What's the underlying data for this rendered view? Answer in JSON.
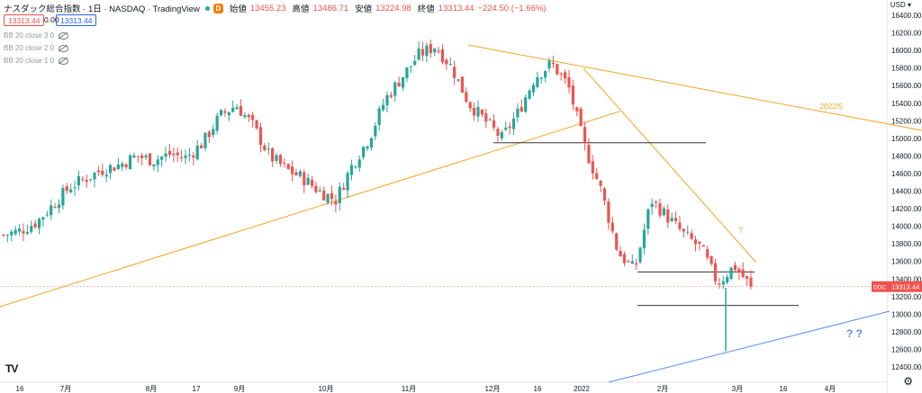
{
  "header": {
    "title": "ナスダック総合指数 · 1日 · NASDAQ · TradingView",
    "badge": "D",
    "ohlc": [
      {
        "label": "始値",
        "value": "13455.23"
      },
      {
        "label": "高値",
        "value": "13486.71"
      },
      {
        "label": "安値",
        "value": "13224.98"
      },
      {
        "label": "終値",
        "value": "13313.44"
      }
    ],
    "change": "−224.50 (−1.66%)",
    "price_box_sell": "13313.44",
    "spread": "0.00",
    "price_box_buy": "13313.44"
  },
  "indicators": [
    {
      "label": "BB 20 close 3 0",
      "icon": "eye-hidden-icon"
    },
    {
      "label": "BB 20 close 2 0",
      "icon": "eye-hidden-icon"
    },
    {
      "label": "BB 20 close 1 0",
      "icon": "eye-hidden-icon"
    }
  ],
  "axis": {
    "currency": "USD",
    "price_ticks": [
      "16400.00",
      "16200.00",
      "16000.00",
      "15800.00",
      "15600.00",
      "15400.00",
      "15200.00",
      "15000.00",
      "14800.00",
      "14600.00",
      "14400.00",
      "14200.00",
      "14000.00",
      "13800.00",
      "13600.00",
      "13400.00",
      "13200.00",
      "13000.00",
      "12800.00",
      "12600.00",
      "12400.00"
    ],
    "time_ticks": [
      "16",
      "7月",
      "8月",
      "17",
      "9月",
      "10月",
      "11月",
      "12月",
      "16",
      "2022",
      "2月",
      "3月",
      "16",
      "4月"
    ],
    "last_price_tag": "13313.44",
    "last_price_prefix": "DDC"
  },
  "annotations": {
    "label_2022_5": "2022/5",
    "question_orange": "?",
    "question_blue": "? ?"
  },
  "colors": {
    "up": "#26a69a",
    "down": "#ef5350",
    "trend_orange": "#f5a623",
    "trend_blue": "#5b8def",
    "hline": "#333333",
    "price_line": "#ef5350"
  },
  "chart_data": {
    "type": "candlestick",
    "ylim": [
      12300,
      16500
    ],
    "x": [
      "16",
      "7月",
      "8月",
      "17",
      "9月",
      "10月",
      "11月",
      "12月",
      "16",
      "2022",
      "2月",
      "3月",
      "16",
      "4月"
    ],
    "close_path": [
      13900,
      13950,
      14050,
      14250,
      14450,
      14550,
      14650,
      14700,
      14800,
      14750,
      14820,
      14780,
      14950,
      15250,
      15380,
      15150,
      14800,
      14650,
      14550,
      14400,
      14300,
      14700,
      15000,
      15450,
      15700,
      15950,
      16050,
      15800,
      15400,
      15200,
      15000,
      15300,
      15700,
      15850,
      15600,
      14900,
      14400,
      13700,
      13500,
      14300,
      14100,
      13900,
      13750,
      13350,
      13550,
      13313.44
    ],
    "last": 13313.44,
    "hlines": [
      14950,
      13480,
      13100
    ]
  },
  "footer": {
    "logo": "TV",
    "settings_icon": "gear-icon"
  }
}
